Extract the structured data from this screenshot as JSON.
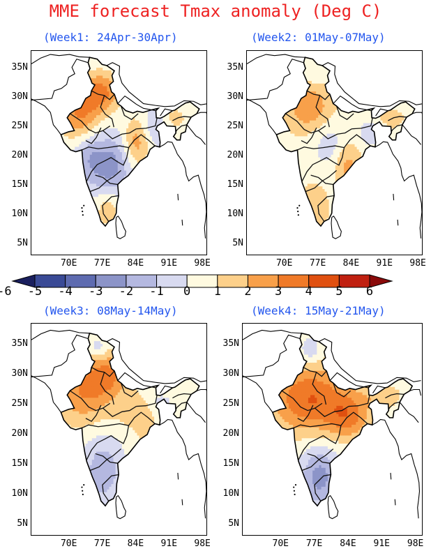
{
  "title": "MME forecast Tmax anomaly (Deg C)",
  "colors": {
    "title": "#ee2222",
    "subtitle": "#2255ee"
  },
  "lat_labels": [
    "35N",
    "30N",
    "25N",
    "20N",
    "15N",
    "10N",
    "5N"
  ],
  "lon_labels": [
    "70E",
    "77E",
    "84E",
    "91E",
    "98E"
  ],
  "colorbar": {
    "labels": [
      "-6",
      "-5",
      "-4",
      "-3",
      "-2",
      "-1",
      "0",
      "1",
      "2",
      "3",
      "4",
      "5",
      "6"
    ],
    "colors": [
      "#1a1f5e",
      "#3a4a96",
      "#5e6bb0",
      "#8c94c8",
      "#b4b8e0",
      "#d8daf0",
      "#fffae0",
      "#fdd08a",
      "#f8a04a",
      "#f07a28",
      "#e05010",
      "#c02010",
      "#8a0a0a"
    ]
  },
  "panels": [
    {
      "subtitle": "(Week1: 24Apr-30Apr)",
      "pattern": "week1"
    },
    {
      "subtitle": "(Week2: 01May-07May)",
      "pattern": "week2"
    },
    {
      "subtitle": "(Week3: 08May-14May)",
      "pattern": "week3"
    },
    {
      "subtitle": "(Week4: 15May-21May)",
      "pattern": "week4"
    }
  ]
}
